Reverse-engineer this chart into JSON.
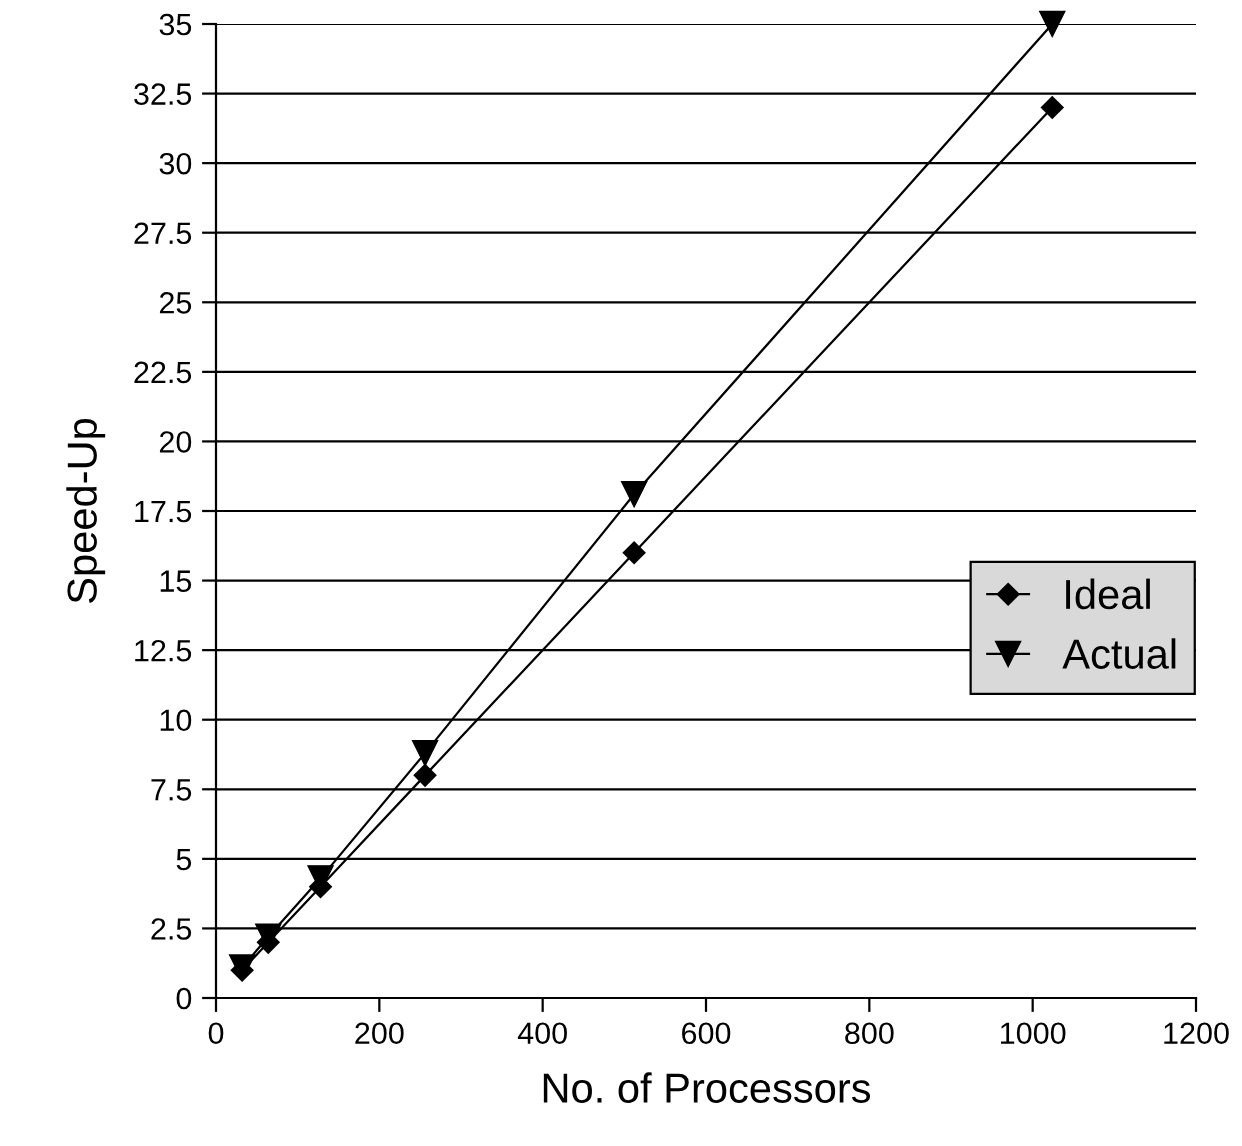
{
  "chart_data": {
    "type": "line",
    "xlabel": "No. of Processors",
    "ylabel": "Speed-Up",
    "series": [
      {
        "name": "Ideal",
        "color": "#000000",
        "marker": "diamond",
        "x": [
          32,
          64,
          128,
          256,
          512,
          1024
        ],
        "values": [
          1,
          2,
          4,
          8,
          16,
          32
        ]
      },
      {
        "name": "Actual",
        "color": "#000000",
        "marker": "triangle",
        "x": [
          32,
          64,
          128,
          256,
          512,
          1024
        ],
        "values": [
          1.1,
          2.2,
          4.3,
          8.8,
          18.1,
          35
        ]
      }
    ],
    "xlim": [
      0,
      1200
    ],
    "xticks": [
      0,
      200,
      400,
      600,
      800,
      1000,
      1200
    ],
    "ylim": [
      0,
      35
    ],
    "yticks": [
      0,
      2.5,
      5,
      7.5,
      10,
      12.5,
      15,
      17.5,
      20,
      22.5,
      25,
      27.5,
      30,
      32.5,
      35
    ],
    "grid": "y",
    "legend": "right",
    "line_style": "solid"
  }
}
